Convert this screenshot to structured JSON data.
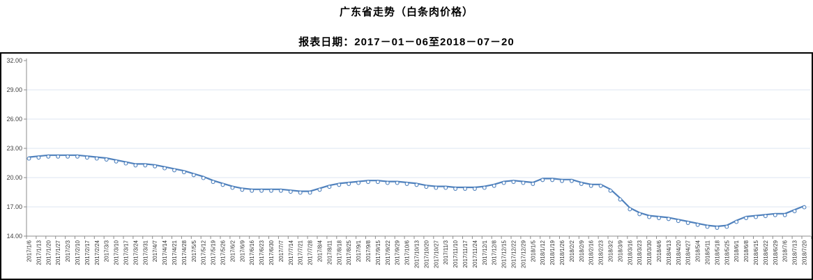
{
  "header": {
    "title": "广东省走势（白条肉价格）",
    "subtitle": "报表日期：2017－01－06至2018－07－20"
  },
  "chart_data": {
    "type": "line",
    "title": "广东省走势（白条肉价格）",
    "subtitle": "报表日期：2017－01－06至2018－07－20",
    "series_name": "白条肉价格",
    "legend_position": "none",
    "grid": true,
    "ylim": [
      14,
      32
    ],
    "yticks": [
      32,
      29,
      26,
      23,
      20,
      17,
      14
    ],
    "x": [
      "2017/1/6",
      "2017/1/13",
      "2017/1/20",
      "2017/1/27",
      "2017/2/3",
      "2017/2/10",
      "2017/2/17",
      "2017/2/24",
      "2017/3/3",
      "2017/3/10",
      "2017/3/17",
      "2017/3/24",
      "2017/3/31",
      "2017/4/7",
      "2017/4/14",
      "2017/4/21",
      "2017/4/28",
      "2017/5/5",
      "2017/5/12",
      "2017/5/19",
      "2017/5/26",
      "2017/6/2",
      "2017/6/9",
      "2017/6/16",
      "2017/6/23",
      "2017/6/30",
      "2017/7/7",
      "2017/7/14",
      "2017/7/21",
      "2017/7/28",
      "2017/8/4",
      "2017/8/11",
      "2017/8/18",
      "2017/8/25",
      "2017/9/1",
      "2017/9/8",
      "2017/9/15",
      "2017/9/22",
      "2017/9/29",
      "2017/10/6",
      "2017/10/13",
      "2017/10/20",
      "2017/10/27",
      "2017/11/3",
      "2017/11/10",
      "2017/11/17",
      "2017/11/24",
      "2017/12/1",
      "2017/12/8",
      "2017/12/15",
      "2017/12/22",
      "2017/12/29",
      "2018/1/5",
      "2018/1/12",
      "2018/1/19",
      "2018/1/26",
      "2018/2/2",
      "2018/2/9",
      "2018/2/16",
      "2018/2/23",
      "2018/3/2",
      "2018/3/9",
      "2018/3/16",
      "2018/3/23",
      "2018/3/30",
      "2018/4/6",
      "2018/4/13",
      "2018/4/20",
      "2018/4/27",
      "2018/5/4",
      "2018/5/11",
      "2018/5/18",
      "2018/5/25",
      "2018/6/1",
      "2018/6/8",
      "2018/6/15",
      "2018/6/22",
      "2018/6/29",
      "2018/7/6",
      "2018/7/13",
      "2018/7/20"
    ],
    "values": [
      22.1,
      22.2,
      22.3,
      22.3,
      22.3,
      22.3,
      22.2,
      22.1,
      22.0,
      21.8,
      21.6,
      21.4,
      21.4,
      21.3,
      21.1,
      20.9,
      20.7,
      20.4,
      20.1,
      19.7,
      19.4,
      19.1,
      18.9,
      18.8,
      18.8,
      18.8,
      18.8,
      18.7,
      18.6,
      18.6,
      18.9,
      19.2,
      19.4,
      19.5,
      19.6,
      19.7,
      19.7,
      19.6,
      19.6,
      19.5,
      19.4,
      19.2,
      19.1,
      19.1,
      19.0,
      19.0,
      19.0,
      19.1,
      19.3,
      19.6,
      19.7,
      19.6,
      19.5,
      19.9,
      19.9,
      19.8,
      19.8,
      19.5,
      19.3,
      19.3,
      18.8,
      17.9,
      16.9,
      16.4,
      16.1,
      16.0,
      15.9,
      15.7,
      15.5,
      15.3,
      15.1,
      15.0,
      15.1,
      15.6,
      16.0,
      16.1,
      16.2,
      16.3,
      16.3,
      16.7,
      17.1
    ],
    "colors": {
      "line": "#4f81bd",
      "marker_fill": "#ffffff",
      "marker_stroke": "#4f81bd",
      "gridline": "#dce6f2",
      "axis": "#8c8c8c",
      "y_tick_label": "#3f3f3f",
      "x_tick_label": "#333333",
      "frame_border": "#000000",
      "title": "#000000"
    }
  }
}
